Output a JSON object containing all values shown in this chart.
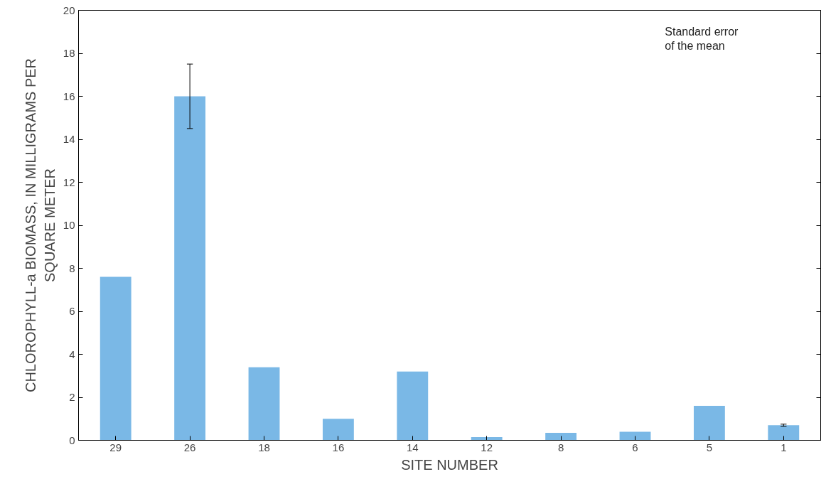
{
  "chart_data": {
    "type": "bar",
    "xlabel": "SITE NUMBER",
    "ylabel": "CHLOROPHYLL-a BIOMASS, IN MILLIGRAMS PER SQUARE METER",
    "categories": [
      "29",
      "26",
      "18",
      "16",
      "14",
      "12",
      "8",
      "6",
      "5",
      "1"
    ],
    "values": [
      7.6,
      16.0,
      3.4,
      1.0,
      3.2,
      0.15,
      0.35,
      0.4,
      1.6,
      0.7
    ],
    "errors": [
      null,
      [
        14.5,
        17.5
      ],
      null,
      null,
      null,
      null,
      null,
      null,
      null,
      [
        0.65,
        0.75
      ]
    ],
    "color": "#7ab8e6",
    "ylim": [
      0,
      20
    ],
    "yticks": [
      0,
      2,
      4,
      6,
      8,
      10,
      12,
      14,
      16,
      18,
      20
    ],
    "grid": false,
    "annotations": [
      "Standard error of the mean"
    ]
  }
}
